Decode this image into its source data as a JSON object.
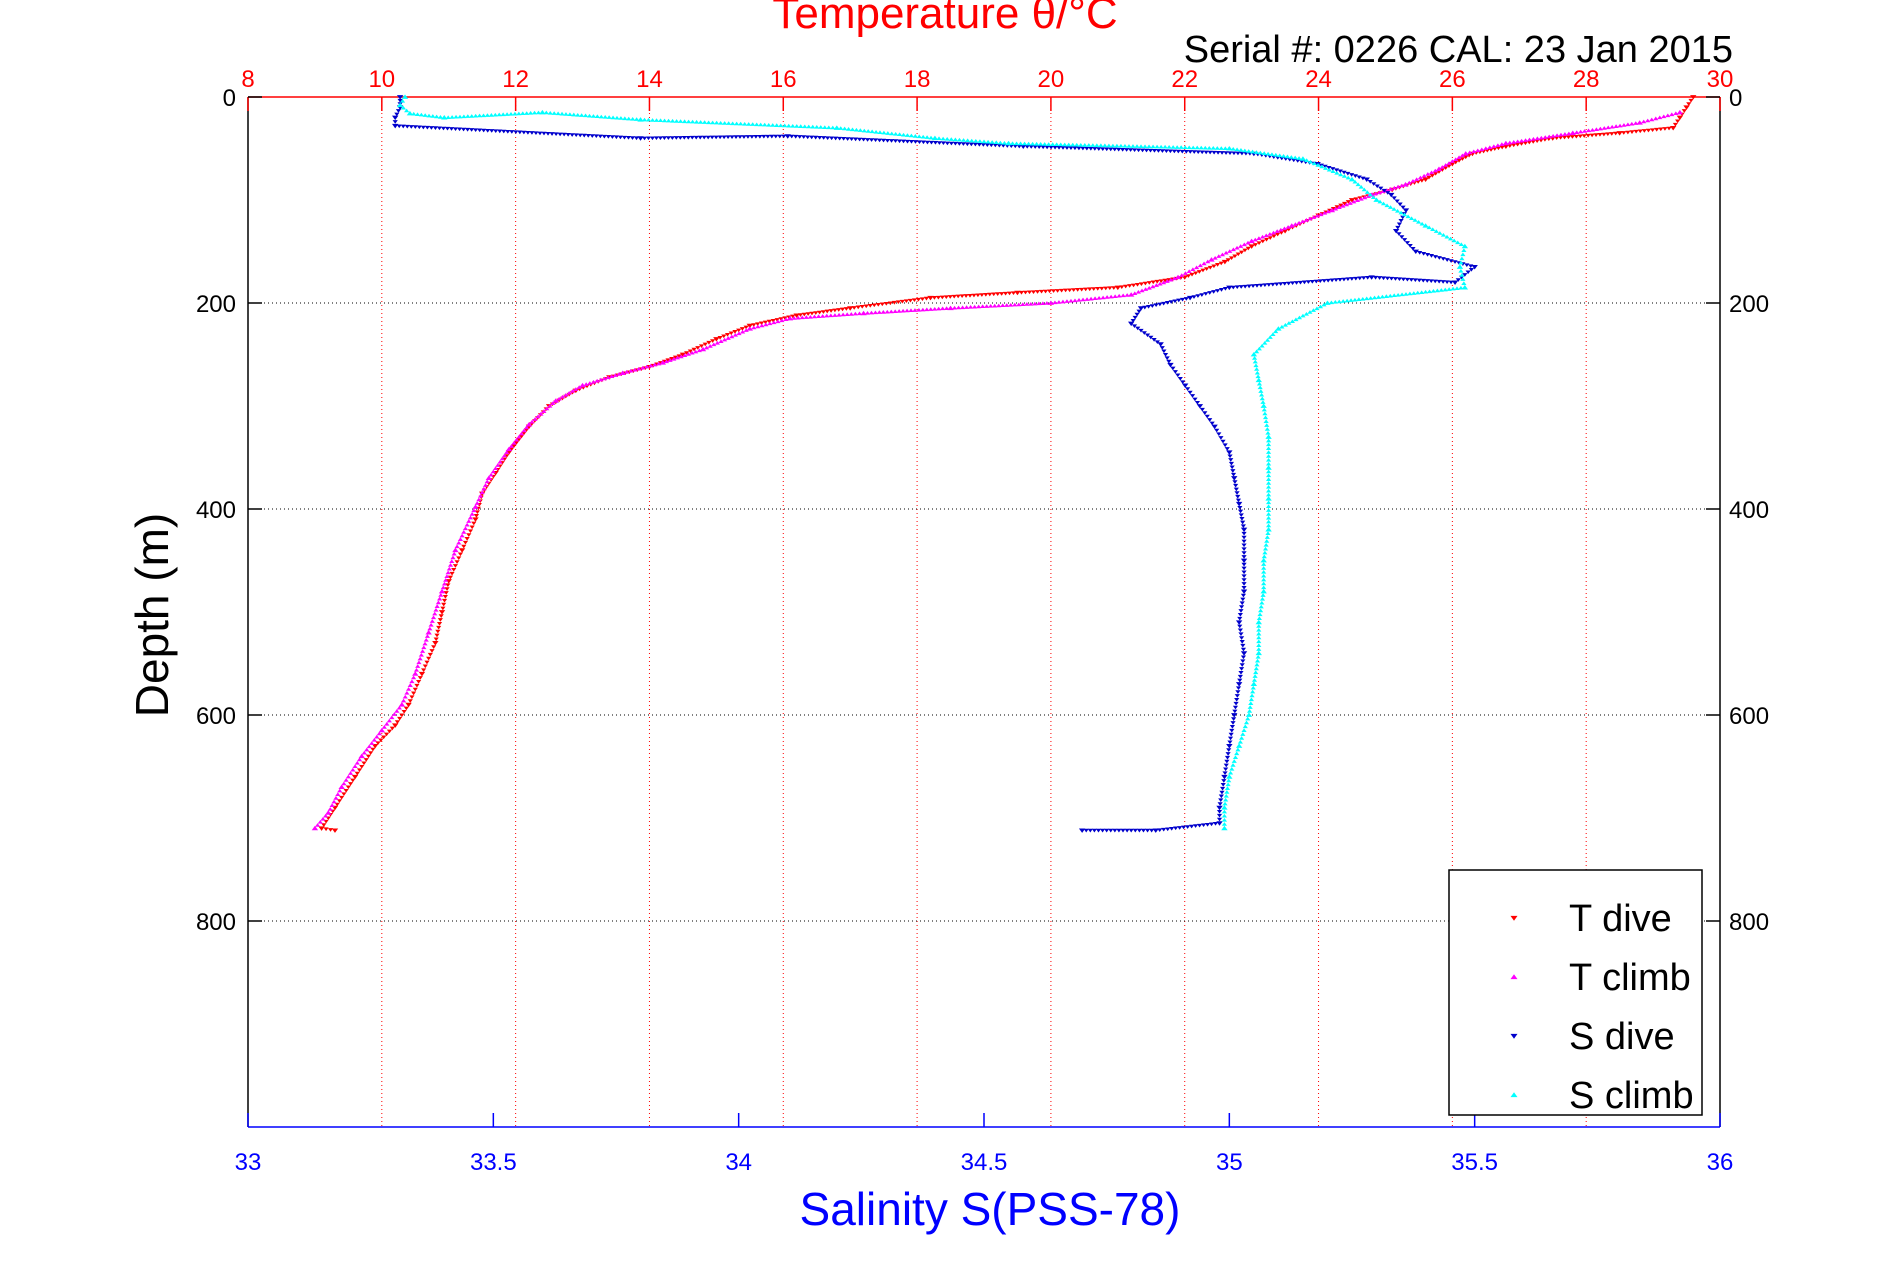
{
  "chart_data": {
    "type": "scatter",
    "top_axis": {
      "label": "Temperature θ/°C",
      "range": [
        8,
        30
      ],
      "ticks": [
        "8",
        "10",
        "12",
        "14",
        "16",
        "18",
        "20",
        "22",
        "24",
        "26",
        "28",
        "30"
      ],
      "color": "#ff0000"
    },
    "bottom_axis": {
      "label": "Salinity S(PSS-78)",
      "range": [
        33,
        36
      ],
      "ticks": [
        "33",
        "33.5",
        "34",
        "34.5",
        "35",
        "35.5",
        "36"
      ],
      "color": "#0000ff"
    },
    "y_axis": {
      "label": "Depth (m)",
      "range": [
        0,
        1000
      ],
      "inverted": true,
      "ticks": [
        "0",
        "200",
        "400",
        "600",
        "800"
      ]
    },
    "annotation": "Serial #: 0226  CAL: 23 Jan 2015",
    "grid": true,
    "legend_position": "bottom-right",
    "series": [
      {
        "name": "T dive",
        "axis": "temperature",
        "color": "#ff0000",
        "marker": "triangle-down",
        "points": [
          [
            29.6,
            0
          ],
          [
            29.5,
            10
          ],
          [
            29.4,
            20
          ],
          [
            29.3,
            30
          ],
          [
            28.5,
            35
          ],
          [
            27.5,
            40
          ],
          [
            26.8,
            48
          ],
          [
            26.3,
            55
          ],
          [
            26.0,
            65
          ],
          [
            25.6,
            80
          ],
          [
            25.1,
            90
          ],
          [
            24.5,
            100
          ],
          [
            24.0,
            115
          ],
          [
            23.5,
            130
          ],
          [
            23.0,
            145
          ],
          [
            22.6,
            160
          ],
          [
            22.0,
            175
          ],
          [
            21.0,
            185
          ],
          [
            19.5,
            190
          ],
          [
            18.2,
            195
          ],
          [
            17.0,
            205
          ],
          [
            16.2,
            212
          ],
          [
            15.5,
            222
          ],
          [
            15.0,
            235
          ],
          [
            14.5,
            250
          ],
          [
            14.0,
            262
          ],
          [
            13.4,
            272
          ],
          [
            12.9,
            285
          ],
          [
            12.5,
            300
          ],
          [
            12.2,
            320
          ],
          [
            11.9,
            345
          ],
          [
            11.7,
            365
          ],
          [
            11.5,
            385
          ],
          [
            11.4,
            410
          ],
          [
            11.2,
            440
          ],
          [
            11.0,
            470
          ],
          [
            10.9,
            500
          ],
          [
            10.8,
            530
          ],
          [
            10.6,
            560
          ],
          [
            10.4,
            590
          ],
          [
            10.2,
            610
          ],
          [
            9.9,
            630
          ],
          [
            9.6,
            660
          ],
          [
            9.3,
            690
          ],
          [
            9.1,
            710
          ],
          [
            9.3,
            712
          ]
        ]
      },
      {
        "name": "T climb",
        "axis": "temperature",
        "color": "#ff00ff",
        "marker": "triangle-up",
        "points": [
          [
            29.4,
            15
          ],
          [
            28.8,
            25
          ],
          [
            27.8,
            35
          ],
          [
            26.8,
            45
          ],
          [
            26.2,
            55
          ],
          [
            25.8,
            70
          ],
          [
            25.3,
            85
          ],
          [
            24.8,
            95
          ],
          [
            24.2,
            110
          ],
          [
            23.6,
            125
          ],
          [
            23.0,
            140
          ],
          [
            22.4,
            158
          ],
          [
            21.9,
            175
          ],
          [
            21.2,
            192
          ],
          [
            20.0,
            200
          ],
          [
            18.5,
            205
          ],
          [
            17.2,
            210
          ],
          [
            16.1,
            215
          ],
          [
            15.5,
            225
          ],
          [
            14.8,
            245
          ],
          [
            14.2,
            258
          ],
          [
            13.6,
            268
          ],
          [
            13.0,
            280
          ],
          [
            12.6,
            295
          ],
          [
            12.2,
            318
          ],
          [
            11.9,
            342
          ],
          [
            11.6,
            370
          ],
          [
            11.4,
            398
          ],
          [
            11.1,
            440
          ],
          [
            10.9,
            480
          ],
          [
            10.7,
            520
          ],
          [
            10.5,
            560
          ],
          [
            10.3,
            590
          ],
          [
            10.0,
            615
          ],
          [
            9.7,
            640
          ],
          [
            9.4,
            670
          ],
          [
            9.2,
            695
          ],
          [
            9.0,
            710
          ]
        ]
      },
      {
        "name": "S dive",
        "axis": "salinity",
        "color": "#0000cc",
        "marker": "triangle-down",
        "points": [
          [
            33.31,
            0
          ],
          [
            33.31,
            10
          ],
          [
            33.3,
            20
          ],
          [
            33.3,
            28
          ],
          [
            33.8,
            40
          ],
          [
            34.1,
            38
          ],
          [
            34.58,
            48
          ],
          [
            35.05,
            55
          ],
          [
            35.18,
            65
          ],
          [
            35.28,
            80
          ],
          [
            35.33,
            95
          ],
          [
            35.36,
            110
          ],
          [
            35.34,
            130
          ],
          [
            35.38,
            150
          ],
          [
            35.5,
            165
          ],
          [
            35.46,
            180
          ],
          [
            35.29,
            175
          ],
          [
            35.0,
            185
          ],
          [
            34.92,
            195
          ],
          [
            34.82,
            205
          ],
          [
            34.8,
            220
          ],
          [
            34.86,
            240
          ],
          [
            34.88,
            260
          ],
          [
            34.91,
            280
          ],
          [
            34.94,
            300
          ],
          [
            34.97,
            320
          ],
          [
            35.0,
            345
          ],
          [
            35.01,
            370
          ],
          [
            35.02,
            395
          ],
          [
            35.03,
            420
          ],
          [
            35.03,
            450
          ],
          [
            35.03,
            480
          ],
          [
            35.02,
            510
          ],
          [
            35.03,
            540
          ],
          [
            35.02,
            570
          ],
          [
            35.01,
            600
          ],
          [
            35.0,
            630
          ],
          [
            34.99,
            660
          ],
          [
            34.98,
            690
          ],
          [
            34.98,
            705
          ],
          [
            34.85,
            712
          ],
          [
            34.7,
            712
          ]
        ]
      },
      {
        "name": "S climb",
        "axis": "salinity",
        "color": "#00ffff",
        "marker": "triangle-up",
        "points": [
          [
            33.32,
            0
          ],
          [
            33.31,
            8
          ],
          [
            33.33,
            16
          ],
          [
            33.4,
            20
          ],
          [
            33.6,
            15
          ],
          [
            33.8,
            22
          ],
          [
            34.2,
            30
          ],
          [
            34.4,
            40
          ],
          [
            34.55,
            45
          ],
          [
            35.0,
            50
          ],
          [
            35.15,
            60
          ],
          [
            35.25,
            80
          ],
          [
            35.3,
            100
          ],
          [
            35.4,
            125
          ],
          [
            35.48,
            145
          ],
          [
            35.47,
            165
          ],
          [
            35.48,
            185
          ],
          [
            35.2,
            200
          ],
          [
            35.1,
            225
          ],
          [
            35.05,
            250
          ],
          [
            35.06,
            275
          ],
          [
            35.07,
            300
          ],
          [
            35.08,
            330
          ],
          [
            35.08,
            360
          ],
          [
            35.08,
            390
          ],
          [
            35.08,
            420
          ],
          [
            35.07,
            450
          ],
          [
            35.07,
            480
          ],
          [
            35.06,
            510
          ],
          [
            35.06,
            540
          ],
          [
            35.05,
            570
          ],
          [
            35.04,
            600
          ],
          [
            35.02,
            630
          ],
          [
            35.0,
            660
          ],
          [
            34.99,
            690
          ],
          [
            34.99,
            710
          ]
        ]
      }
    ]
  }
}
